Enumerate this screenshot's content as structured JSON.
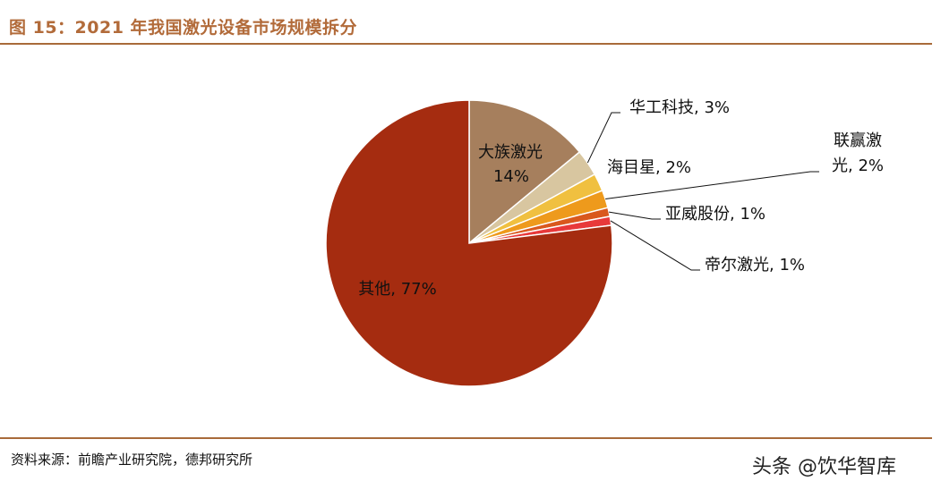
{
  "header": {
    "title": "图 15：2021 年我国激光设备市场规模拆分"
  },
  "footer": {
    "source": "资料来源：前瞻产业研究院，德邦研究所",
    "watermark": "头条 @饮华智库"
  },
  "chart_data": {
    "type": "pie",
    "slices": [
      {
        "name": "大族激光",
        "value": 14,
        "label_lines": [
          "大族激光",
          "14%"
        ],
        "color": "#a67f5d"
      },
      {
        "name": "华工科技",
        "value": 3,
        "label_lines": [
          "华工科技, 3%"
        ],
        "color": "#d8c6a0"
      },
      {
        "name": "海目星",
        "value": 2,
        "label_lines": [
          "海目星, 2%"
        ],
        "color": "#f0c040"
      },
      {
        "name": "联赢激光",
        "value": 2,
        "label_lines": [
          "联赢激",
          "光, 2%"
        ],
        "color": "#ee9a1c"
      },
      {
        "name": "亚威股份",
        "value": 1,
        "label_lines": [
          "亚威股份, 1%"
        ],
        "color": "#d9581d"
      },
      {
        "name": "帝尔激光",
        "value": 1,
        "label_lines": [
          "帝尔激光, 1%"
        ],
        "color": "#e8393a"
      },
      {
        "name": "其他",
        "value": 77,
        "label_lines": [
          "其他, 77%"
        ],
        "color": "#a52c10"
      }
    ]
  }
}
